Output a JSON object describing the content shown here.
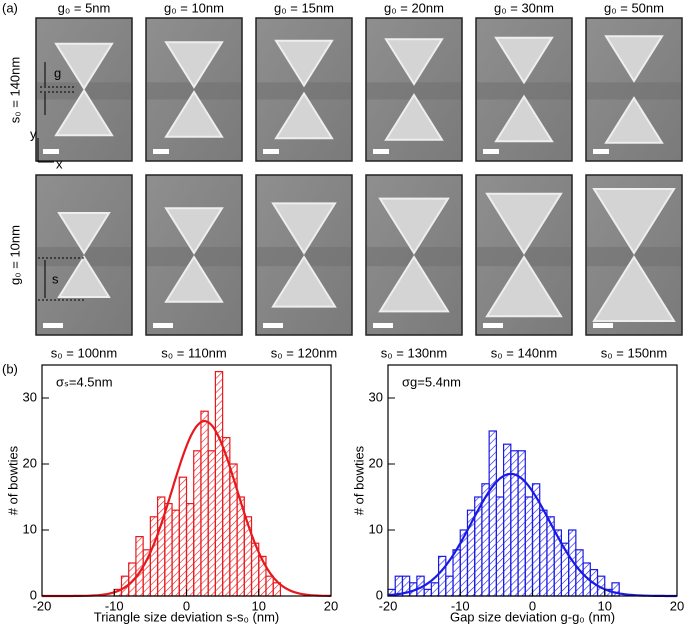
{
  "panel_labels": [
    "(a)",
    "(b)"
  ],
  "sem": {
    "top_labels": [
      "g₀ = 5nm",
      "g₀ = 10nm",
      "g₀ = 15nm",
      "g₀ = 20nm",
      "g₀ = 30nm",
      "g₀ = 50nm"
    ],
    "bottom_labels": [
      "s₀ = 100nm",
      "s₀ = 110nm",
      "s₀ = 120nm",
      "s₀ = 130nm",
      "s₀ = 140nm",
      "s₀ = 150nm"
    ],
    "row_labels": [
      "s₀ = 140nm",
      "g₀ = 10nm"
    ],
    "annotations": {
      "g": "g",
      "s": "s",
      "y": "y",
      "x": "x"
    }
  },
  "chart_data": [
    {
      "type": "histogram",
      "annotation": "σₛ=4.5nm",
      "xlabel": "Triangle size deviation s-s₀ (nm)",
      "ylabel": "# of bowties",
      "bins": [
        -10,
        -9,
        -8,
        -7,
        -6,
        -5,
        -4,
        -3,
        -2,
        -1,
        0,
        1,
        2,
        3,
        4,
        5,
        6,
        7,
        8,
        9,
        10,
        11,
        12,
        13
      ],
      "values": [
        1,
        3,
        5,
        9,
        7,
        12,
        15,
        14,
        13,
        18,
        14,
        22,
        28,
        22,
        34,
        24,
        20,
        15,
        12,
        8,
        6,
        3,
        2
      ],
      "color": "#e8191c",
      "fit": {
        "amplitude": 26.5,
        "center": 2.5,
        "sigma": 4.5
      },
      "xlim": [
        -20,
        20
      ],
      "ylim": [
        0,
        35
      ],
      "xticks": [
        -20,
        -10,
        0,
        10,
        20
      ],
      "yticks": [
        0,
        10,
        20,
        30
      ]
    },
    {
      "type": "histogram",
      "annotation": "σg=5.4nm",
      "xlabel": "Gap size deviation g-g₀ (nm)",
      "ylabel": "# of bowties",
      "bins": [
        -20,
        -19,
        -18,
        -17,
        -16,
        -15,
        -14,
        -13,
        -12,
        -11,
        -10,
        -9,
        -8,
        -7,
        -6,
        -5,
        -4,
        -3,
        -2,
        -1,
        0,
        1,
        2,
        3,
        4,
        5,
        6,
        7,
        8,
        9,
        10,
        11,
        12
      ],
      "values": [
        1,
        3,
        3,
        2,
        3,
        1,
        2,
        6,
        3,
        7,
        10,
        13,
        15,
        17,
        25,
        15,
        23,
        22,
        22,
        15,
        17,
        13,
        12,
        10,
        8,
        10,
        7,
        5,
        4,
        3,
        1,
        2
      ],
      "color": "#1a1ae6",
      "fit": {
        "amplitude": 18.5,
        "center": -3,
        "sigma": 5.4
      },
      "xlim": [
        -20,
        20
      ],
      "ylim": [
        0,
        35
      ],
      "xticks": [
        -20,
        -10,
        0,
        10,
        20
      ],
      "yticks": [
        0,
        10,
        20,
        30
      ]
    }
  ]
}
